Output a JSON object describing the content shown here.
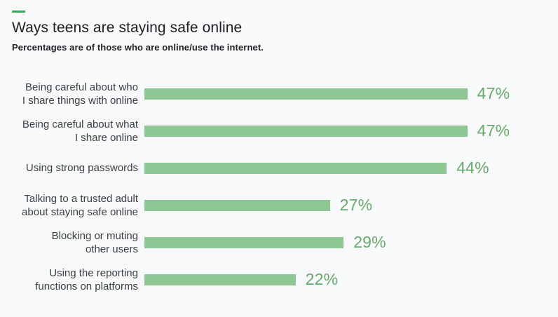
{
  "header": {
    "title": "Ways teens are staying safe online",
    "subtitle": "Percentages are of those who are online/use the internet.",
    "accent_color": "#34a853"
  },
  "chart_data": {
    "type": "bar",
    "orientation": "horizontal",
    "title": "Ways teens are staying safe online",
    "subtitle": "Percentages are of those who are online/use the internet.",
    "categories": [
      "Being careful about who\nI share things with online",
      "Being careful about what\nI share online",
      "Using strong passwords",
      "Talking to a trusted adult\nabout staying safe online",
      "Blocking or muting\nother users",
      "Using the reporting\nfunctions on platforms"
    ],
    "values": [
      47,
      47,
      44,
      27,
      29,
      22
    ],
    "value_labels": [
      "47%",
      "47%",
      "44%",
      "27%",
      "29%",
      "22%"
    ],
    "xlim": [
      0,
      100
    ],
    "grid": false,
    "legend": false,
    "bar_color": "#8ec694",
    "value_label_color": "#68a96c",
    "category_label_color": "#3c4043"
  }
}
